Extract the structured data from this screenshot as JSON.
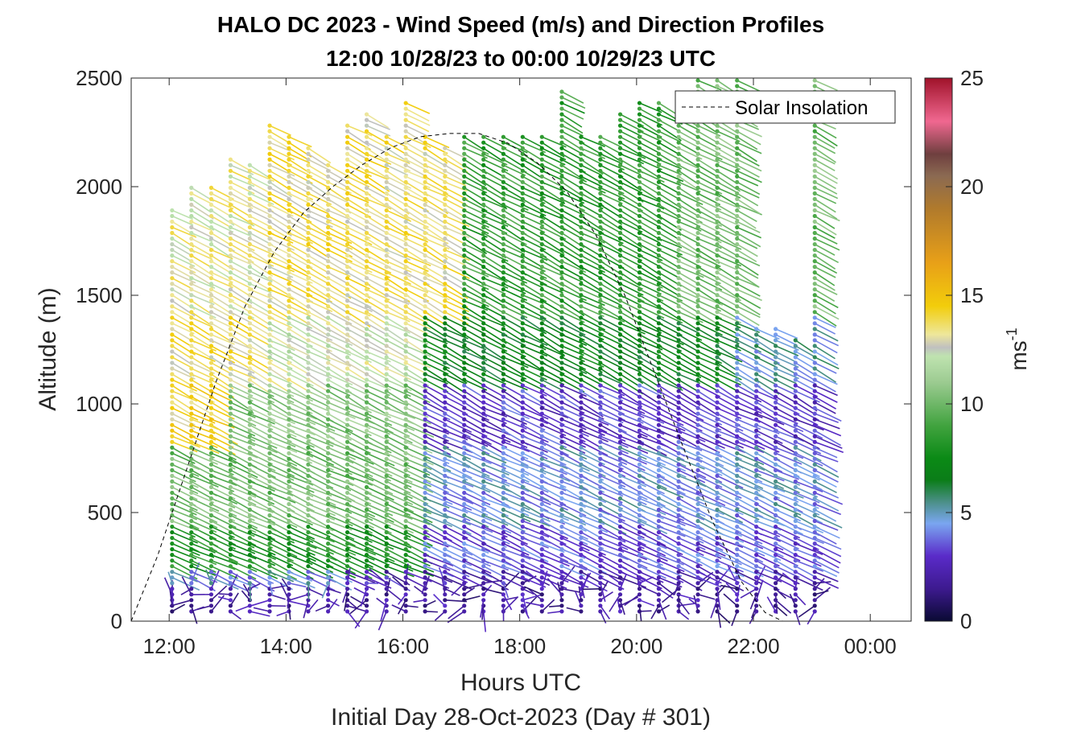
{
  "chart_data": {
    "type": "scatter",
    "title": "HALO DC 2023 - Wind Speed (m/s) and Direction Profiles",
    "subtitle": "12:00 10/28/23 to 00:00 10/29/23  UTC",
    "xlabel": "Hours UTC",
    "xlabel2": "Initial Day 28-Oct-2023 (Day # 301)",
    "ylabel": "Altitude (m)",
    "colorbar_label": "ms",
    "colorbar_label_exp": "-1",
    "x_ticks": [
      {
        "value": 12,
        "label": "12:00"
      },
      {
        "value": 14,
        "label": "14:00"
      },
      {
        "value": 16,
        "label": "16:00"
      },
      {
        "value": 18,
        "label": "18:00"
      },
      {
        "value": 20,
        "label": "20:00"
      },
      {
        "value": 22,
        "label": "22:00"
      },
      {
        "value": 24,
        "label": "00:00"
      }
    ],
    "y_ticks": [
      0,
      500,
      1000,
      1500,
      2000,
      2500
    ],
    "colorbar_ticks": [
      0,
      5,
      10,
      15,
      20,
      25
    ],
    "xlim": [
      11.35,
      24.7
    ],
    "ylim": [
      0,
      2500
    ],
    "clim": [
      0,
      25
    ],
    "grid": false,
    "legend": {
      "entries": [
        "Solar Insolation"
      ],
      "placement": "top-right"
    },
    "solar_insolation": {
      "x": [
        11.35,
        11.8,
        12.3,
        12.8,
        13.3,
        13.8,
        14.3,
        14.8,
        15.3,
        15.8,
        16.3,
        16.8,
        17.3,
        17.8,
        18.3,
        18.8,
        19.3,
        19.8,
        20.3,
        20.8,
        21.3,
        21.8,
        22.2,
        22.5,
        24.7
      ],
      "y": [
        0,
        300,
        700,
        1100,
        1450,
        1700,
        1880,
        2000,
        2100,
        2180,
        2230,
        2245,
        2245,
        2200,
        2110,
        1980,
        1780,
        1500,
        1150,
        800,
        460,
        180,
        40,
        0,
        0
      ]
    },
    "wind_barbs": {
      "x_hours": [
        12.05,
        12.38,
        12.72,
        13.05,
        13.38,
        13.72,
        14.05,
        14.38,
        14.72,
        15.05,
        15.38,
        15.72,
        16.05,
        16.38,
        16.72,
        17.05,
        17.38,
        17.72,
        18.05,
        18.38,
        18.72,
        19.05,
        19.38,
        19.72,
        20.05,
        20.38,
        20.72,
        21.05,
        21.38,
        21.72,
        22.05,
        22.38,
        22.72,
        23.05
      ],
      "top_altitude_m": [
        1900,
        2000,
        2000,
        2150,
        2100,
        2300,
        2250,
        2200,
        2100,
        2300,
        2350,
        2250,
        2400,
        2250,
        2200,
        2250,
        2250,
        2250,
        2250,
        2250,
        2450,
        2250,
        2250,
        2350,
        2400,
        2400,
        2400,
        2500,
        2500,
        2500,
        1350,
        1350,
        1300,
        2500
      ],
      "speed_bands_ms": [
        {
          "max_alt_m": 150,
          "start_h": 11.9,
          "end_h": 24.0,
          "speed": 2
        },
        {
          "max_alt_m": 250,
          "start_h": 11.9,
          "end_h": 15.0,
          "speed": 4.5
        },
        {
          "max_alt_m": 250,
          "start_h": 15.0,
          "end_h": 24.0,
          "speed": 2.5
        },
        {
          "max_alt_m": 450,
          "start_h": 11.9,
          "end_h": 16.3,
          "speed": 8
        },
        {
          "max_alt_m": 450,
          "start_h": 16.3,
          "end_h": 24.0,
          "speed": 3.5
        },
        {
          "max_alt_m": 800,
          "start_h": 11.9,
          "end_h": 16.3,
          "speed": 10
        },
        {
          "max_alt_m": 800,
          "start_h": 16.3,
          "end_h": 24.0,
          "speed": 4.5
        },
        {
          "max_alt_m": 1100,
          "start_h": 11.9,
          "end_h": 12.9,
          "speed": 14
        },
        {
          "max_alt_m": 1100,
          "start_h": 12.9,
          "end_h": 16.3,
          "speed": 10.5
        },
        {
          "max_alt_m": 1100,
          "start_h": 16.3,
          "end_h": 24.0,
          "speed": 3
        },
        {
          "max_alt_m": 1400,
          "start_h": 11.9,
          "end_h": 13.6,
          "speed": 13.5
        },
        {
          "max_alt_m": 1400,
          "start_h": 13.6,
          "end_h": 16.3,
          "speed": 12.5
        },
        {
          "max_alt_m": 1400,
          "start_h": 16.3,
          "end_h": 21.7,
          "speed": 7
        },
        {
          "max_alt_m": 1400,
          "start_h": 21.7,
          "end_h": 24.0,
          "speed": 5
        },
        {
          "max_alt_m": 2600,
          "start_h": 11.9,
          "end_h": 13.6,
          "speed": 13
        },
        {
          "max_alt_m": 2600,
          "start_h": 13.6,
          "end_h": 17.0,
          "speed": 13.5
        },
        {
          "max_alt_m": 2600,
          "start_h": 17.0,
          "end_h": 20.5,
          "speed": 8.5
        },
        {
          "max_alt_m": 2600,
          "start_h": 20.5,
          "end_h": 24.0,
          "speed": 10
        }
      ]
    }
  },
  "colors": {
    "colormap": [
      [
        0,
        "#0a0a33"
      ],
      [
        1.5,
        "#3d1a8f"
      ],
      [
        3,
        "#5a2bc9"
      ],
      [
        4.5,
        "#7aa6f0"
      ],
      [
        5.5,
        "#4a8f86"
      ],
      [
        6.5,
        "#0b7d18"
      ],
      [
        7.5,
        "#0b8a16"
      ],
      [
        9,
        "#41a33f"
      ],
      [
        11,
        "#9ccb91"
      ],
      [
        12.2,
        "#bfe3b0"
      ],
      [
        12.6,
        "#c0c0c0"
      ],
      [
        13.2,
        "#eee79a"
      ],
      [
        14.5,
        "#f2cd0b"
      ],
      [
        16.5,
        "#e8a018"
      ],
      [
        19,
        "#b07a2c"
      ],
      [
        20.5,
        "#8b6a52"
      ],
      [
        21.5,
        "#6f3f3f"
      ],
      [
        23,
        "#f06890"
      ],
      [
        25,
        "#a0122a"
      ]
    ],
    "solar_line": "#000000",
    "axis": "#262626"
  }
}
